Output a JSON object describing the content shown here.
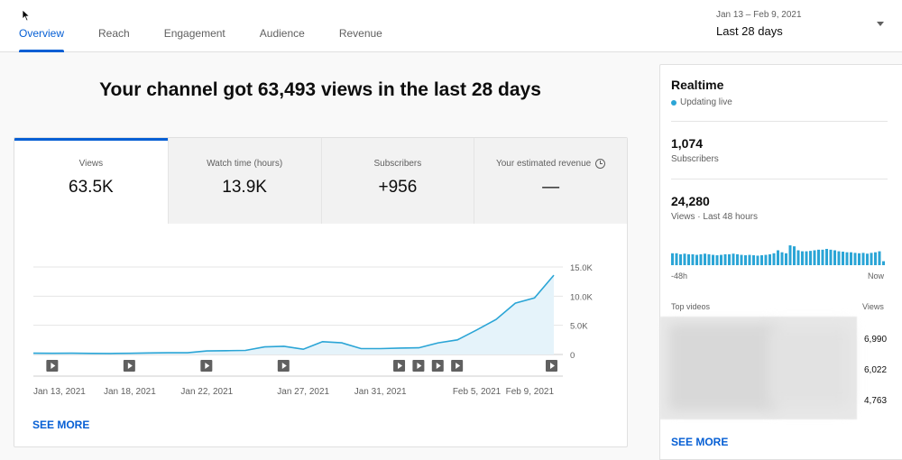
{
  "tabs": [
    {
      "label": "Overview",
      "active": true
    },
    {
      "label": "Reach",
      "active": false
    },
    {
      "label": "Engagement",
      "active": false
    },
    {
      "label": "Audience",
      "active": false
    },
    {
      "label": "Revenue",
      "active": false
    }
  ],
  "date_range": {
    "sub": "Jan 13 – Feb 9, 2021",
    "main": "Last 28 days"
  },
  "headline": "Your channel got 63,493 views in the last 28 days",
  "metrics": [
    {
      "label": "Views",
      "value": "63.5K"
    },
    {
      "label": "Watch time (hours)",
      "value": "13.9K"
    },
    {
      "label": "Subscribers",
      "value": "+956"
    },
    {
      "label": "Your estimated revenue",
      "value": "—"
    }
  ],
  "main_see_more": "SEE MORE",
  "chart_data": {
    "type": "area",
    "series": [
      {
        "values": [
          220,
          200,
          210,
          180,
          170,
          200,
          260,
          300,
          300,
          600,
          650,
          700,
          1300,
          1400,
          900,
          2200,
          2000,
          1000,
          1000,
          1100,
          1150,
          2000,
          2500,
          4200,
          6000,
          8800,
          9700,
          13600
        ]
      }
    ],
    "x_tick_labels": [
      "Jan 13, 2021",
      "Jan 18, 2021",
      "Jan 22, 2021",
      "Jan 27, 2021",
      "Jan 31, 2021",
      "Feb 5, 2021",
      "Feb 9, 2021"
    ],
    "y_tick_labels": [
      "0",
      "5.0K",
      "10.0K",
      "15.0K"
    ],
    "ylim": [
      0,
      15000
    ],
    "grid": true,
    "color": "#2ba5d6",
    "fill_color": "#e5f3fa",
    "video_markers_count": 9
  },
  "realtime": {
    "title": "Realtime",
    "status": "Updating live",
    "subscribers_value": "1,074",
    "subscribers_label": "Subscribers",
    "views_value": "24,280",
    "views_label": "Views · Last 48 hours",
    "bars": [
      60,
      60,
      55,
      58,
      55,
      55,
      52,
      55,
      58,
      55,
      52,
      50,
      52,
      55,
      55,
      58,
      55,
      52,
      50,
      52,
      50,
      48,
      50,
      52,
      55,
      60,
      75,
      65,
      60,
      100,
      95,
      75,
      70,
      70,
      72,
      75,
      78,
      78,
      82,
      78,
      75,
      70,
      68,
      65,
      65,
      62,
      60,
      62,
      58,
      62,
      65,
      70,
      20
    ],
    "axis_left": "-48h",
    "axis_right": "Now",
    "top_videos_label": "Top videos",
    "views_col_label": "Views",
    "top_videos": [
      "6,990",
      "6,022",
      "4,763"
    ],
    "see_more": "SEE MORE"
  }
}
